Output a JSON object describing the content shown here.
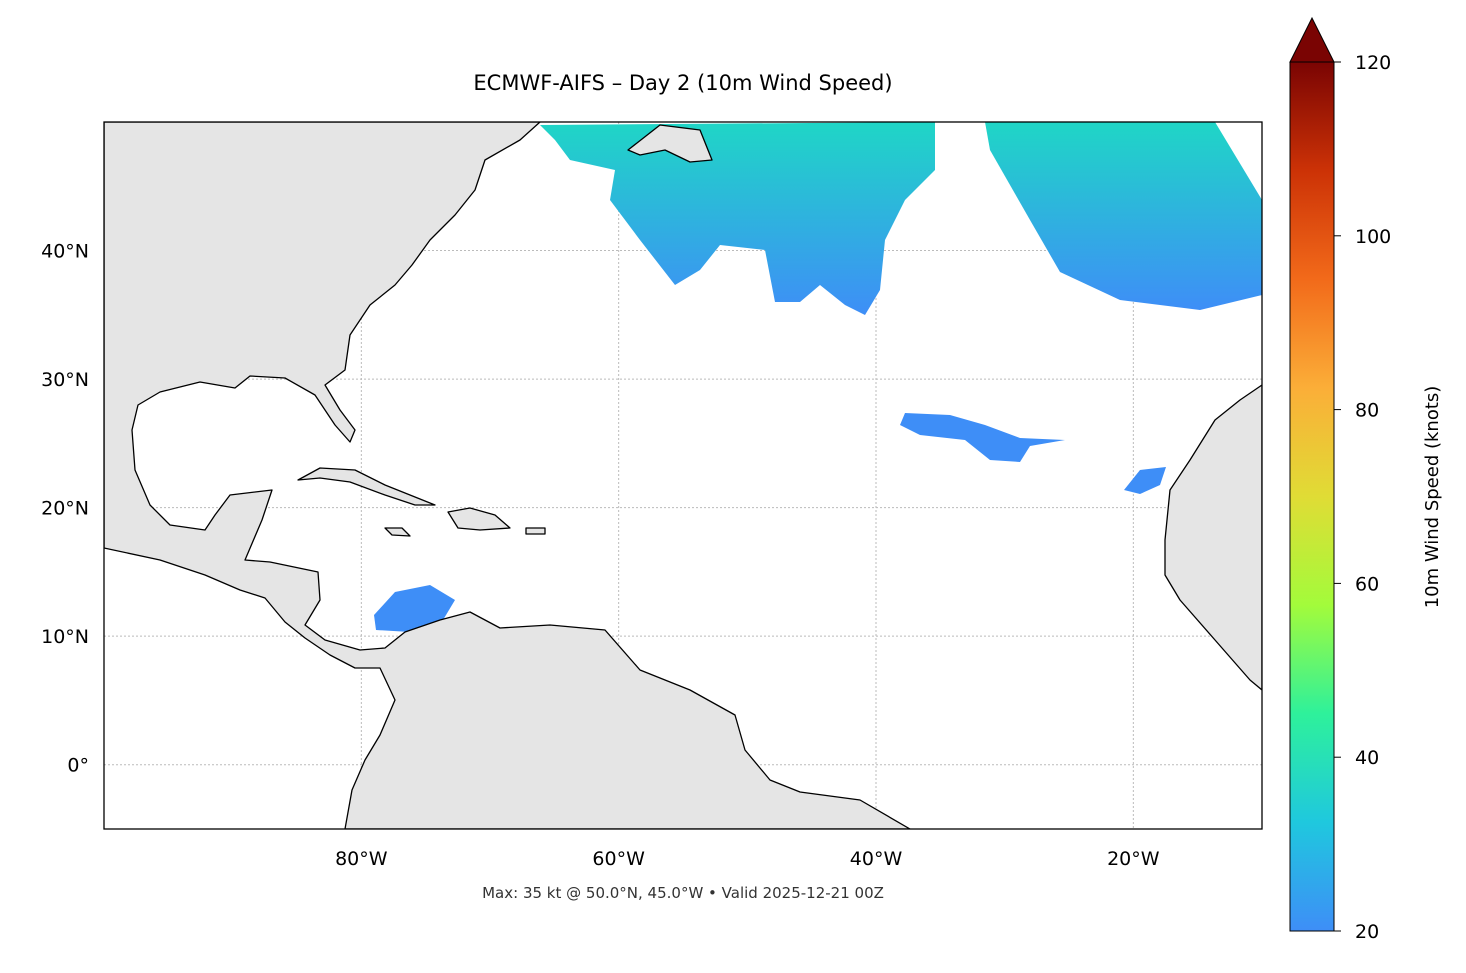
{
  "chart_data": {
    "type": "map",
    "title": "ECMWF-AIFS – Day 2 (10m Wind Speed)",
    "annotation": "Max: 35 kt @ 50.0°N, 45.0°W • Valid 2025-12-21 00Z",
    "xlim": [
      -100,
      -10
    ],
    "ylim": [
      -5,
      50
    ],
    "xticks": [
      {
        "value": -80,
        "label": "80°W"
      },
      {
        "value": -60,
        "label": "60°W"
      },
      {
        "value": -40,
        "label": "40°W"
      },
      {
        "value": -20,
        "label": "20°W"
      }
    ],
    "yticks": [
      {
        "value": 0,
        "label": "0°"
      },
      {
        "value": 10,
        "label": "10°N"
      },
      {
        "value": 20,
        "label": "20°N"
      },
      {
        "value": 30,
        "label": "30°N"
      },
      {
        "value": 40,
        "label": "40°N"
      }
    ],
    "grid": true,
    "colorbar": {
      "label": "10m Wind Speed (knots)",
      "lim": [
        20,
        120
      ],
      "ticks": [
        20,
        40,
        60,
        80,
        100,
        120
      ],
      "colors": [
        "#3e8ef7",
        "#1fc8de",
        "#2ef19b",
        "#a3fb3b",
        "#e0dc35",
        "#fbae38",
        "#f26a1a",
        "#cc3206",
        "#7a0403"
      ]
    }
  }
}
